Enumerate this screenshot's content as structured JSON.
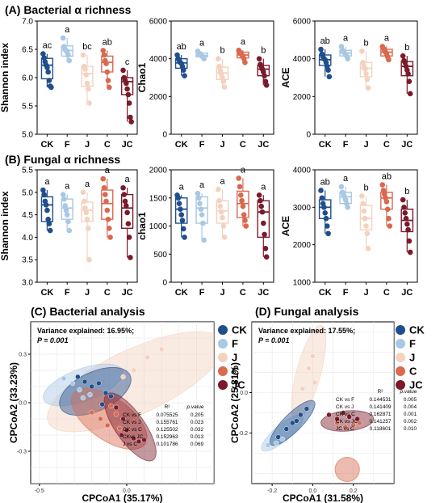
{
  "colors": {
    "CK": "#1f4e8c",
    "F": "#a8c8e4",
    "J": "#f3d2bf",
    "C": "#d9694f",
    "JC": "#7a1a2a",
    "grid": "#e6e6e6"
  },
  "sections": {
    "a": "(A) Bacterial α richness",
    "b": "(B) Fungal α richness",
    "c": "(C) Bacterial analysis",
    "d": "(D) Fungal analysis"
  },
  "chart_data": [
    {
      "id": "bac_shannon",
      "type": "box",
      "ylabel": "Shannon index",
      "ylim": [
        5.0,
        7.0
      ],
      "yticks": [
        "5.0",
        "5.5",
        "6.0",
        "6.5",
        "7.0"
      ],
      "categories": [
        "CK",
        "F",
        "J",
        "C",
        "JC"
      ],
      "letters": [
        "ac",
        "a",
        "bc",
        "ab",
        "c"
      ],
      "boxes": [
        {
          "q1": 5.98,
          "median": 6.22,
          "q3": 6.34,
          "min": 5.83,
          "max": 6.42
        },
        {
          "q1": 6.38,
          "median": 6.48,
          "q3": 6.56,
          "min": 6.3,
          "max": 6.7
        },
        {
          "q1": 5.85,
          "median": 6.07,
          "q3": 6.2,
          "min": 5.55,
          "max": 6.4
        },
        {
          "q1": 6.1,
          "median": 6.27,
          "q3": 6.38,
          "min": 5.83,
          "max": 6.48
        },
        {
          "q1": 5.7,
          "median": 5.93,
          "q3": 6.0,
          "min": 5.22,
          "max": 6.13
        }
      ],
      "points": [
        [
          6.42,
          6.35,
          6.28,
          6.22,
          6.18,
          6.1,
          5.95,
          5.85,
          5.83
        ],
        [
          6.7,
          6.55,
          6.5,
          6.48,
          6.45,
          6.4,
          6.3
        ],
        [
          6.4,
          6.2,
          6.15,
          6.05,
          5.9,
          5.8,
          5.55
        ],
        [
          6.48,
          6.4,
          6.3,
          6.25,
          6.1,
          5.95,
          5.83
        ],
        [
          6.13,
          6.0,
          5.95,
          5.9,
          5.8,
          5.7,
          5.55,
          5.3,
          5.22
        ]
      ]
    },
    {
      "id": "bac_chao1",
      "type": "box",
      "ylabel": "Chao1",
      "ylim": [
        0,
        6000
      ],
      "yticks": [
        "0",
        "2000",
        "4000",
        "6000"
      ],
      "categories": [
        "CK",
        "F",
        "J",
        "C",
        "JC"
      ],
      "letters": [
        "ab",
        "a",
        "b",
        "a",
        "b"
      ],
      "boxes": [
        {
          "q1": 3500,
          "median": 3780,
          "q3": 4000,
          "min": 3100,
          "max": 4200
        },
        {
          "q1": 4100,
          "median": 4180,
          "q3": 4300,
          "min": 4000,
          "max": 4400
        },
        {
          "q1": 2900,
          "median": 3250,
          "q3": 3550,
          "min": 2500,
          "max": 4000
        },
        {
          "q1": 4050,
          "median": 4200,
          "q3": 4350,
          "min": 3800,
          "max": 4450
        },
        {
          "q1": 3100,
          "median": 3450,
          "q3": 3650,
          "min": 2600,
          "max": 4000
        }
      ],
      "points": [
        [
          4200,
          4000,
          3900,
          3800,
          3750,
          3600,
          3400,
          3100
        ],
        [
          4400,
          4300,
          4250,
          4180,
          4150,
          4100,
          4000
        ],
        [
          4000,
          3600,
          3400,
          3200,
          3000,
          2800,
          2500
        ],
        [
          4450,
          4350,
          4300,
          4200,
          4100,
          4000,
          3800
        ],
        [
          4000,
          3700,
          3600,
          3450,
          3300,
          3100,
          2800,
          2600
        ]
      ]
    },
    {
      "id": "bac_ace",
      "type": "box",
      "ylabel": "ACE",
      "ylim": [
        0,
        6000
      ],
      "yticks": [
        "0",
        "2000",
        "4000",
        "6000"
      ],
      "categories": [
        "CK",
        "F",
        "J",
        "C",
        "JC"
      ],
      "letters": [
        "ab",
        "a",
        "b",
        "a",
        "b"
      ],
      "boxes": [
        {
          "q1": 3650,
          "median": 3950,
          "q3": 4200,
          "min": 3050,
          "max": 4500
        },
        {
          "q1": 4150,
          "median": 4300,
          "q3": 4450,
          "min": 4000,
          "max": 4650
        },
        {
          "q1": 3050,
          "median": 3500,
          "q3": 3800,
          "min": 2450,
          "max": 4400
        },
        {
          "q1": 4150,
          "median": 4350,
          "q3": 4500,
          "min": 3950,
          "max": 4650
        },
        {
          "q1": 3100,
          "median": 3600,
          "q3": 3850,
          "min": 2150,
          "max": 4150
        }
      ],
      "points": [
        [
          4500,
          4250,
          4100,
          4000,
          3950,
          3800,
          3600,
          3400,
          3050
        ],
        [
          4650,
          4450,
          4400,
          4300,
          4250,
          4150,
          4000
        ],
        [
          4400,
          3800,
          3600,
          3450,
          3200,
          2900,
          2450
        ],
        [
          4650,
          4550,
          4450,
          4350,
          4250,
          4100,
          3950
        ],
        [
          4150,
          3900,
          3800,
          3600,
          3400,
          3200,
          2800,
          2150
        ]
      ]
    },
    {
      "id": "fun_shannon",
      "type": "box",
      "ylabel": "Shannon index",
      "ylim": [
        3.0,
        5.5
      ],
      "yticks": [
        "3.0",
        "3.5",
        "4.0",
        "4.5",
        "5.0",
        "5.5"
      ],
      "categories": [
        "CK",
        "F",
        "J",
        "C",
        "JC"
      ],
      "letters": [
        "a",
        "a",
        "a",
        "a",
        "a"
      ],
      "boxes": [
        {
          "q1": 4.35,
          "median": 4.72,
          "q3": 4.9,
          "min": 4.15,
          "max": 5.05
        },
        {
          "q1": 4.4,
          "median": 4.65,
          "q3": 4.85,
          "min": 4.15,
          "max": 4.95
        },
        {
          "q1": 4.35,
          "median": 4.6,
          "q3": 4.78,
          "min": 3.5,
          "max": 5.0
        },
        {
          "q1": 4.4,
          "median": 4.75,
          "q3": 5.05,
          "min": 4.0,
          "max": 5.3
        },
        {
          "q1": 4.2,
          "median": 4.65,
          "q3": 4.95,
          "min": 3.55,
          "max": 5.1
        }
      ],
      "points": [
        [
          5.05,
          4.95,
          4.8,
          4.72,
          4.6,
          4.4,
          4.3,
          4.15
        ],
        [
          4.95,
          4.85,
          4.7,
          4.6,
          4.5,
          4.35,
          4.15
        ],
        [
          5.0,
          4.8,
          4.65,
          4.55,
          4.4,
          4.2,
          3.5
        ],
        [
          5.3,
          5.1,
          4.95,
          4.8,
          4.6,
          4.4,
          4.2,
          4.0
        ],
        [
          5.1,
          4.95,
          4.8,
          4.7,
          4.55,
          4.3,
          4.0,
          3.55
        ]
      ]
    },
    {
      "id": "fun_chao1",
      "type": "box",
      "ylabel": "chao1",
      "ylim": [
        0,
        2000
      ],
      "yticks": [
        "0",
        "500",
        "1000",
        "1500",
        "2000"
      ],
      "categories": [
        "CK",
        "F",
        "J",
        "C",
        "JC"
      ],
      "letters": [
        "a",
        "a",
        "a",
        "a",
        "a"
      ],
      "boxes": [
        {
          "q1": 1050,
          "median": 1300,
          "q3": 1500,
          "min": 800,
          "max": 1550
        },
        {
          "q1": 1050,
          "median": 1320,
          "q3": 1520,
          "min": 750,
          "max": 1580
        },
        {
          "q1": 1050,
          "median": 1270,
          "q3": 1450,
          "min": 800,
          "max": 1650
        },
        {
          "q1": 1150,
          "median": 1400,
          "q3": 1620,
          "min": 1000,
          "max": 1850
        },
        {
          "q1": 800,
          "median": 1250,
          "q3": 1450,
          "min": 450,
          "max": 1550
        }
      ],
      "points": [
        [
          1550,
          1500,
          1400,
          1300,
          1200,
          1100,
          950,
          800
        ],
        [
          1580,
          1500,
          1400,
          1300,
          1200,
          1050,
          750
        ],
        [
          1650,
          1450,
          1350,
          1250,
          1150,
          1000,
          800
        ],
        [
          1850,
          1700,
          1550,
          1450,
          1350,
          1200,
          1100,
          1000
        ],
        [
          1550,
          1450,
          1350,
          1250,
          1050,
          850,
          600,
          450
        ]
      ]
    },
    {
      "id": "fun_ace",
      "type": "box",
      "ylabel": "ACE",
      "ylim": [
        1000,
        4000
      ],
      "yticks": [
        "1000",
        "2000",
        "3000",
        "4000"
      ],
      "categories": [
        "CK",
        "F",
        "J",
        "C",
        "JC"
      ],
      "letters": [
        "ab",
        "a",
        "b",
        "ab",
        "b"
      ],
      "boxes": [
        {
          "q1": 2700,
          "median": 3000,
          "q3": 3200,
          "min": 2300,
          "max": 3450
        },
        {
          "q1": 3100,
          "median": 3280,
          "q3": 3400,
          "min": 3000,
          "max": 3550
        },
        {
          "q1": 2400,
          "median": 2700,
          "q3": 3050,
          "min": 1900,
          "max": 3300
        },
        {
          "q1": 2950,
          "median": 3250,
          "q3": 3400,
          "min": 2500,
          "max": 3600
        },
        {
          "q1": 2350,
          "median": 2650,
          "q3": 2950,
          "min": 1800,
          "max": 3200
        }
      ],
      "points": [
        [
          3450,
          3250,
          3100,
          3000,
          2850,
          2700,
          2500,
          2300
        ],
        [
          3550,
          3400,
          3350,
          3280,
          3200,
          3100,
          3000
        ],
        [
          3300,
          3100,
          2900,
          2700,
          2500,
          2300,
          1900
        ],
        [
          3600,
          3450,
          3350,
          3250,
          3150,
          2950,
          2700,
          2500
        ],
        [
          3200,
          3000,
          2850,
          2700,
          2550,
          2400,
          2100,
          1800
        ]
      ]
    },
    {
      "id": "bac_cpcoa",
      "type": "scatter",
      "xlabel": "CPCoA1 (35.17%)",
      "ylabel": "CPCoA2 (33.23%)",
      "xlim": [
        -0.55,
        0.5
      ],
      "ylim": [
        -0.5,
        0.5
      ],
      "xticks": [
        {
          "v": -0.5,
          "l": "-0.5"
        },
        {
          "v": 0.0,
          "l": "0.0"
        }
      ],
      "yticks": [
        {
          "v": 0.3,
          "l": "0.3"
        },
        {
          "v": 0.0,
          "l": "0.0"
        },
        {
          "v": -0.3,
          "l": "-0.3"
        }
      ],
      "variance_label": "Variance explained: 16.95%;",
      "p_label": "P = 0.001",
      "stats_header": [
        "R²",
        "p.value"
      ],
      "stats": [
        [
          "CK vs F",
          "0.075525",
          "0.205"
        ],
        [
          "CK vs J",
          "0.155761",
          "0.023"
        ],
        [
          "CK vs C",
          "0.125502",
          "0.032"
        ],
        [
          "CKvs JC",
          "0.152963",
          "0.013"
        ],
        [
          "J vs C",
          "0.101786",
          "0.069"
        ]
      ],
      "ellipses": [
        {
          "g": "J",
          "cx": 0.05,
          "cy": 0.13,
          "rx": 0.55,
          "ry": 0.2,
          "rot": -25
        },
        {
          "g": "F",
          "cx": -0.25,
          "cy": 0.11,
          "rx": 0.24,
          "ry": 0.1,
          "rot": -20
        },
        {
          "g": "CK",
          "cx": -0.18,
          "cy": 0.07,
          "rx": 0.22,
          "ry": 0.12,
          "rot": -25
        },
        {
          "g": "C",
          "cx": -0.1,
          "cy": -0.1,
          "rx": 0.25,
          "ry": 0.13,
          "rot": 35
        },
        {
          "g": "JC",
          "cx": 0.02,
          "cy": -0.15,
          "rx": 0.23,
          "ry": 0.09,
          "rot": 55
        }
      ],
      "points": {
        "CK": [
          [
            -0.28,
            0.16
          ],
          [
            -0.24,
            0.13
          ],
          [
            -0.2,
            0.1
          ],
          [
            -0.16,
            0.12
          ],
          [
            -0.12,
            0.06
          ],
          [
            -0.09,
            0.04
          ],
          [
            -0.14,
            -0.01
          ]
        ],
        "F": [
          [
            -0.36,
            0.15
          ],
          [
            -0.31,
            0.12
          ],
          [
            -0.27,
            0.08
          ],
          [
            -0.21,
            0.05
          ],
          [
            -0.25,
            0.03
          ]
        ],
        "J": [
          [
            0.12,
            0.28
          ],
          [
            0.2,
            0.33
          ],
          [
            0.04,
            0.2
          ],
          [
            -0.02,
            0.16
          ]
        ],
        "C": [
          [
            -0.2,
            -0.06
          ],
          [
            -0.15,
            -0.1
          ],
          [
            -0.11,
            -0.14
          ],
          [
            -0.06,
            -0.07
          ],
          [
            -0.04,
            -0.16
          ],
          [
            -0.09,
            -0.02
          ]
        ],
        "JC": [
          [
            -0.06,
            -0.03
          ],
          [
            -0.02,
            -0.1
          ],
          [
            0.0,
            -0.17
          ],
          [
            0.04,
            -0.22
          ],
          [
            0.07,
            -0.24
          ],
          [
            0.1,
            -0.23
          ],
          [
            -0.03,
            -0.2
          ]
        ]
      }
    },
    {
      "id": "fun_cpcoa",
      "type": "scatter",
      "xlabel": "CPCoA1 (31.58%)",
      "ylabel": "CPCoA2 (25.81%)",
      "xlim": [
        -0.3,
        0.4
      ],
      "ylim": [
        -0.45,
        0.35
      ],
      "xticks": [
        {
          "v": -0.2,
          "l": "-0.2"
        },
        {
          "v": 0.0,
          "l": "0.0"
        },
        {
          "v": 0.2,
          "l": "0.2"
        }
      ],
      "yticks": [
        {
          "v": 0.0,
          "l": "0.0"
        },
        {
          "v": -0.2,
          "l": "-0.2"
        }
      ],
      "variance_label": "Variance explained: 17.55%;",
      "p_label": "P = 0.001",
      "stats_header": [
        "R²",
        "p.value"
      ],
      "stats": [
        [
          "CK vs F",
          "0.144531",
          "0.005"
        ],
        [
          "CK vs J",
          "0.141409",
          "0.004"
        ],
        [
          "CK vs C",
          "0.162871",
          "0.001"
        ],
        [
          "CK vs JC",
          "0.141257",
          "0.002"
        ],
        [
          "JC vs C",
          "0.118601",
          "0.010"
        ]
      ],
      "ellipses": [
        {
          "g": "J",
          "cx": -0.02,
          "cy": 0.1,
          "rx": 0.24,
          "ry": 0.06,
          "rot": -75
        },
        {
          "g": "F",
          "cx": -0.15,
          "cy": -0.2,
          "rx": 0.13,
          "ry": 0.04,
          "rot": -40
        },
        {
          "g": "CK",
          "cx": -0.1,
          "cy": -0.15,
          "rx": 0.15,
          "ry": 0.045,
          "rot": -45
        },
        {
          "g": "C",
          "cx": 0.17,
          "cy": -0.38,
          "rx": 0.06,
          "ry": 0.06,
          "rot": 0
        },
        {
          "g": "JC",
          "cx": 0.17,
          "cy": -0.14,
          "rx": 0.13,
          "ry": 0.05,
          "rot": -5
        }
      ],
      "points": {
        "CK": [
          [
            -0.17,
            -0.22
          ],
          [
            -0.13,
            -0.18
          ],
          [
            -0.1,
            -0.15
          ],
          [
            -0.06,
            -0.11
          ],
          [
            -0.03,
            -0.08
          ],
          [
            -0.08,
            -0.14
          ]
        ],
        "F": [
          [
            -0.22,
            -0.26
          ],
          [
            -0.18,
            -0.25
          ],
          [
            -0.15,
            -0.23
          ]
        ],
        "J": [
          [
            -0.02,
            0.12
          ],
          [
            0.01,
            0.05
          ],
          [
            -0.05,
            0.02
          ],
          [
            0.0,
            0.18
          ]
        ],
        "C": [
          [
            0.12,
            -0.15
          ],
          [
            0.16,
            -0.17
          ],
          [
            0.2,
            -0.16
          ],
          [
            0.23,
            -0.15
          ]
        ],
        "JC": [
          [
            0.08,
            -0.11
          ],
          [
            0.12,
            -0.13
          ],
          [
            0.18,
            -0.12
          ],
          [
            0.22,
            -0.13
          ],
          [
            0.15,
            -0.1
          ]
        ]
      }
    }
  ],
  "legend_groups": [
    "CK",
    "F",
    "J",
    "C",
    "JC"
  ]
}
